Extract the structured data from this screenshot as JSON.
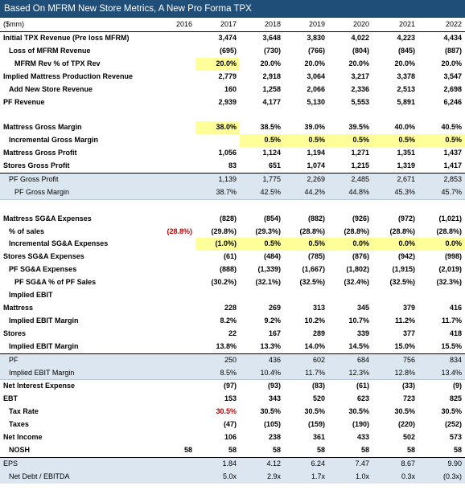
{
  "title": "Based On MFRM New Store Metrics, A New Pro Forma TPX",
  "header": {
    "label": "($mm)",
    "years": [
      "2016",
      "2017",
      "2018",
      "2019",
      "2020",
      "2021",
      "2022"
    ]
  },
  "rows": [
    {
      "key": "initial_tpx_revenue",
      "label": "Initial TPX Revenue (Pre loss MFRM)",
      "values": [
        "",
        "3,474",
        "3,648",
        "3,830",
        "4,022",
        "4,223",
        "4,434"
      ]
    },
    {
      "key": "loss_of_mfrm_revenue",
      "label": "Loss of MFRM Revenue",
      "values": [
        "",
        "(695)",
        "(730)",
        "(766)",
        "(804)",
        "(845)",
        "(887)"
      ]
    },
    {
      "key": "mfrm_rev_pct",
      "label": "MFRM Rev % of TPX Rev",
      "values": [
        "",
        "20.0%",
        "20.0%",
        "20.0%",
        "20.0%",
        "20.0%",
        "20.0%"
      ]
    },
    {
      "key": "implied_mattress_production_revenue",
      "label": "Implied Mattress Production Revenue",
      "values": [
        "",
        "2,779",
        "2,918",
        "3,064",
        "3,217",
        "3,378",
        "3,547"
      ]
    },
    {
      "key": "add_new_store_revenue",
      "label": "Add New Store Revenue",
      "values": [
        "",
        "160",
        "1,258",
        "2,066",
        "2,336",
        "2,513",
        "2,698"
      ]
    },
    {
      "key": "pf_revenue",
      "label": "PF Revenue",
      "values": [
        "",
        "2,939",
        "4,177",
        "5,130",
        "5,553",
        "5,891",
        "6,246"
      ]
    },
    {
      "key": "mattress_gross_margin",
      "label": "Mattress Gross Margin",
      "values": [
        "",
        "38.0%",
        "38.5%",
        "39.0%",
        "39.5%",
        "40.0%",
        "40.5%"
      ]
    },
    {
      "key": "incremental_gross_margin",
      "label": "Incremental Gross Margin",
      "values": [
        "",
        "",
        "0.5%",
        "0.5%",
        "0.5%",
        "0.5%",
        "0.5%"
      ]
    },
    {
      "key": "mattress_gross_profit",
      "label": "Mattress Gross Profit",
      "values": [
        "",
        "1,056",
        "1,124",
        "1,194",
        "1,271",
        "1,351",
        "1,437"
      ]
    },
    {
      "key": "stores_gross_profit",
      "label": "Stores Gross Profit",
      "values": [
        "",
        "83",
        "651",
        "1,074",
        "1,215",
        "1,319",
        "1,417"
      ]
    },
    {
      "key": "pf_gross_profit",
      "label": "PF Gross Profit",
      "values": [
        "",
        "1,139",
        "1,775",
        "2,269",
        "2,485",
        "2,671",
        "2,853"
      ]
    },
    {
      "key": "pf_gross_margin",
      "label": "PF Gross Margin",
      "values": [
        "",
        "38.7%",
        "42.5%",
        "44.2%",
        "44.8%",
        "45.3%",
        "45.7%"
      ]
    },
    {
      "key": "mattress_sga_expenses",
      "label": "Mattress SG&A Expenses",
      "values": [
        "",
        "(828)",
        "(854)",
        "(882)",
        "(926)",
        "(972)",
        "(1,021)"
      ]
    },
    {
      "key": "pct_of_sales",
      "label": "% of sales",
      "values": [
        "(28.8%)",
        "(29.8%)",
        "(29.3%)",
        "(28.8%)",
        "(28.8%)",
        "(28.8%)",
        "(28.8%)"
      ]
    },
    {
      "key": "incremental_sga_expenses",
      "label": "Incremental SG&A Expenses",
      "values": [
        "",
        "(1.0%)",
        "0.5%",
        "0.5%",
        "0.0%",
        "0.0%",
        "0.0%"
      ]
    },
    {
      "key": "stores_sga_expenses",
      "label": "Stores SG&A Expenses",
      "values": [
        "",
        "(61)",
        "(484)",
        "(785)",
        "(876)",
        "(942)",
        "(998)"
      ]
    },
    {
      "key": "pf_sga_expenses",
      "label": "PF SG&A Expenses",
      "values": [
        "",
        "(888)",
        "(1,339)",
        "(1,667)",
        "(1,802)",
        "(1,915)",
        "(2,019)"
      ]
    },
    {
      "key": "pf_sga_pct_pf_sales",
      "label": "PF SG&A % of PF Sales",
      "values": [
        "",
        "(30.2%)",
        "(32.1%)",
        "(32.5%)",
        "(32.4%)",
        "(32.5%)",
        "(32.3%)"
      ]
    },
    {
      "key": "implied_ebit_header",
      "label": "Implied EBIT",
      "values": [
        "",
        "",
        "",
        "",
        "",
        "",
        ""
      ]
    },
    {
      "key": "mattress",
      "label": "Mattress",
      "values": [
        "",
        "228",
        "269",
        "313",
        "345",
        "379",
        "416"
      ]
    },
    {
      "key": "mattress_implied_ebit_margin",
      "label": "Implied EBIT Margin",
      "values": [
        "",
        "8.2%",
        "9.2%",
        "10.2%",
        "10.7%",
        "11.2%",
        "11.7%"
      ]
    },
    {
      "key": "stores",
      "label": "Stores",
      "values": [
        "",
        "22",
        "167",
        "289",
        "339",
        "377",
        "418"
      ]
    },
    {
      "key": "stores_implied_ebit_margin",
      "label": "Implied EBIT Margin",
      "values": [
        "",
        "13.8%",
        "13.3%",
        "14.0%",
        "14.5%",
        "15.0%",
        "15.5%"
      ]
    },
    {
      "key": "pf",
      "label": "PF",
      "values": [
        "",
        "250",
        "436",
        "602",
        "684",
        "756",
        "834"
      ]
    },
    {
      "key": "pf_implied_ebit_margin",
      "label": "Implied EBIT Margin",
      "values": [
        "",
        "8.5%",
        "10.4%",
        "11.7%",
        "12.3%",
        "12.8%",
        "13.4%"
      ]
    },
    {
      "key": "net_interest_expense",
      "label": "Net Interest Expense",
      "values": [
        "",
        "(97)",
        "(93)",
        "(83)",
        "(61)",
        "(33)",
        "(9)"
      ]
    },
    {
      "key": "ebt",
      "label": "EBT",
      "values": [
        "",
        "153",
        "343",
        "520",
        "623",
        "723",
        "825"
      ]
    },
    {
      "key": "tax_rate",
      "label": "Tax Rate",
      "values": [
        "",
        "30.5%",
        "30.5%",
        "30.5%",
        "30.5%",
        "30.5%",
        "30.5%"
      ]
    },
    {
      "key": "taxes",
      "label": "Taxes",
      "values": [
        "",
        "(47)",
        "(105)",
        "(159)",
        "(190)",
        "(220)",
        "(252)"
      ]
    },
    {
      "key": "net_income",
      "label": "Net Income",
      "values": [
        "",
        "106",
        "238",
        "361",
        "433",
        "502",
        "573"
      ]
    },
    {
      "key": "nosh",
      "label": "NOSH",
      "values": [
        "58",
        "58",
        "58",
        "58",
        "58",
        "58",
        "58"
      ]
    },
    {
      "key": "eps",
      "label": "EPS",
      "values": [
        "",
        "1.84",
        "4.12",
        "6.24",
        "7.47",
        "8.67",
        "9.90"
      ]
    },
    {
      "key": "net_debt_ebitda",
      "label": "Net Debt / EBITDA",
      "values": [
        "",
        "5.0x",
        "2.9x",
        "1.7x",
        "1.0x",
        "0.3x",
        "(0.3x)"
      ]
    }
  ],
  "colors": {
    "title_bg": "#1f4e79",
    "pf_row_bg": "#dce6f1",
    "input_highlight": "#ffff99",
    "input_red": "#c00000"
  }
}
